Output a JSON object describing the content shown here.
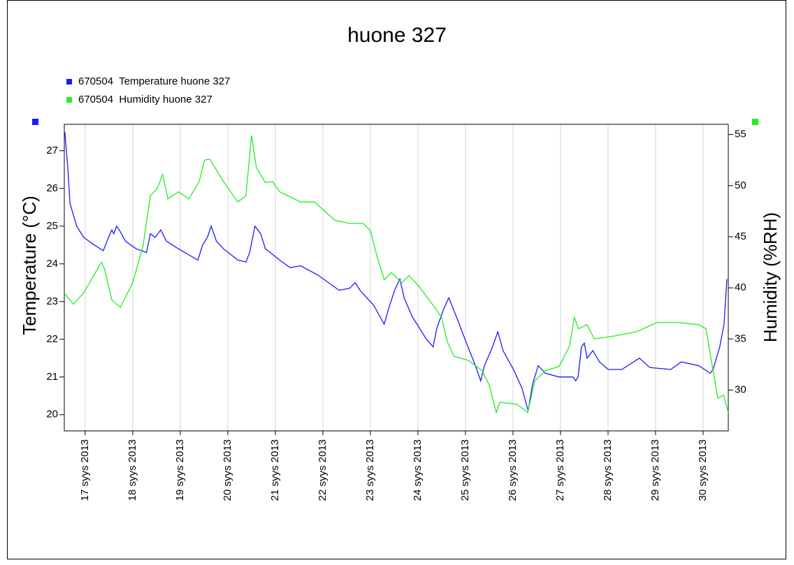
{
  "chart_data": {
    "type": "line",
    "title": "huone 327",
    "y_label": "Temperature (°C)",
    "y2_label": "Humidity (%RH)",
    "xlim": [
      16.56,
      30.53
    ],
    "xticks": [
      {
        "value": 17,
        "label": "17 syys 2013"
      },
      {
        "value": 18,
        "label": "18 syys 2013"
      },
      {
        "value": 19,
        "label": "19 syys 2013"
      },
      {
        "value": 20,
        "label": "20 syys 2013"
      },
      {
        "value": 21,
        "label": "21 syys 2013"
      },
      {
        "value": 22,
        "label": "22 syys 2013"
      },
      {
        "value": 23,
        "label": "23 syys 2013"
      },
      {
        "value": 24,
        "label": "24 syys 2013"
      },
      {
        "value": 25,
        "label": "25 syys 2013"
      },
      {
        "value": 26,
        "label": "26 syys 2013"
      },
      {
        "value": 27,
        "label": "27 syys 2013"
      },
      {
        "value": 28,
        "label": "28 syys 2013"
      },
      {
        "value": 29,
        "label": "29 syys 2013"
      },
      {
        "value": 30,
        "label": "30 syys 2013"
      }
    ],
    "ylim": [
      19.57,
      27.7
    ],
    "yticks": [
      20,
      21,
      22,
      23,
      24,
      25,
      26,
      27
    ],
    "y2lim": [
      26,
      56
    ],
    "y2ticks": [
      30,
      35,
      40,
      45,
      50,
      55
    ],
    "grid": "x",
    "legend": "top-left",
    "series": [
      {
        "name": "670504  Temperature huone 327",
        "color": "#1a1aff",
        "x": [
          16.57,
          16.63,
          16.68,
          16.82,
          16.97,
          17.19,
          17.38,
          17.49,
          17.56,
          17.6,
          17.66,
          17.74,
          17.85,
          18.07,
          18.29,
          18.37,
          18.47,
          18.59,
          18.71,
          18.96,
          19.37,
          19.47,
          19.57,
          19.65,
          19.76,
          19.91,
          20.21,
          20.38,
          20.46,
          20.57,
          20.69,
          20.79,
          21.09,
          21.31,
          21.53,
          21.9,
          22.34,
          22.56,
          22.68,
          22.78,
          23.07,
          23.29,
          23.38,
          23.51,
          23.62,
          23.71,
          23.88,
          24.18,
          24.32,
          24.4,
          24.54,
          24.65,
          24.84,
          24.99,
          25.21,
          25.32,
          25.4,
          25.57,
          25.68,
          25.79,
          26.01,
          26.19,
          26.32,
          26.41,
          26.53,
          26.68,
          26.97,
          27.26,
          27.32,
          27.37,
          27.44,
          27.5,
          27.56,
          27.68,
          27.82,
          28.0,
          28.29,
          28.66,
          28.88,
          29.32,
          29.54,
          29.91,
          30.15,
          30.21,
          30.35,
          30.44,
          30.5
        ],
        "values": [
          27.5,
          26.6,
          25.6,
          25,
          24.7,
          24.5,
          24.35,
          24.7,
          24.9,
          24.8,
          25.0,
          24.85,
          24.6,
          24.4,
          24.3,
          24.8,
          24.7,
          24.9,
          24.6,
          24.4,
          24.1,
          24.5,
          24.7,
          25.0,
          24.6,
          24.4,
          24.1,
          24.05,
          24.3,
          25.0,
          24.8,
          24.4,
          24.1,
          23.9,
          23.95,
          23.7,
          23.3,
          23.35,
          23.5,
          23.3,
          22.9,
          22.4,
          22.8,
          23.3,
          23.6,
          23.1,
          22.6,
          22.0,
          21.8,
          22.3,
          22.8,
          23.1,
          22.5,
          22.0,
          21.3,
          20.9,
          21.3,
          21.8,
          22.2,
          21.7,
          21.2,
          20.7,
          20.1,
          20.8,
          21.3,
          21.1,
          21.0,
          21.0,
          20.9,
          21.0,
          21.8,
          21.9,
          21.5,
          21.7,
          21.4,
          21.2,
          21.2,
          21.5,
          21.25,
          21.2,
          21.4,
          21.3,
          21.1,
          21.2,
          21.8,
          22.4,
          23.6
        ]
      },
      {
        "name": "670504  Humidity huone 327",
        "color": "#22ee22",
        "axis": "y2",
        "x": [
          16.56,
          16.75,
          16.97,
          17.34,
          17.41,
          17.56,
          17.74,
          18.0,
          18.22,
          18.37,
          18.51,
          18.63,
          18.74,
          18.96,
          19.18,
          19.4,
          19.51,
          19.62,
          19.91,
          20.21,
          20.38,
          20.5,
          20.6,
          20.79,
          20.94,
          21.09,
          21.53,
          21.82,
          22.26,
          22.56,
          22.85,
          23.0,
          23.15,
          23.29,
          23.44,
          23.66,
          23.81,
          24.03,
          24.35,
          24.5,
          24.62,
          24.76,
          25.06,
          25.35,
          25.5,
          25.65,
          25.72,
          26.09,
          26.31,
          26.46,
          26.68,
          26.97,
          27.19,
          27.29,
          27.38,
          27.56,
          27.71,
          28.15,
          28.59,
          29.03,
          29.47,
          29.91,
          30.06,
          30.21,
          30.31,
          30.43,
          30.53
        ],
        "values": [
          39.5,
          38.4,
          39.5,
          42.5,
          41.8,
          38.8,
          38.1,
          40.5,
          44.2,
          49,
          49.7,
          51.1,
          48.7,
          49.4,
          48.7,
          50.4,
          52.5,
          52.6,
          50.4,
          48.4,
          49,
          54.9,
          51.8,
          50.3,
          50.4,
          49.4,
          48.4,
          48.4,
          46.6,
          46.3,
          46.3,
          45.6,
          42.9,
          40.8,
          41.5,
          40.5,
          41.2,
          40.1,
          38.1,
          37.1,
          34.7,
          33.3,
          32.9,
          31.9,
          30.5,
          27.8,
          28.8,
          28.6,
          27.8,
          30.9,
          31.9,
          32.3,
          34.3,
          37.1,
          36,
          36.4,
          35,
          35.3,
          35.7,
          36.6,
          36.6,
          36.4,
          36,
          31.9,
          29.2,
          29.5,
          27.8
        ]
      }
    ]
  }
}
